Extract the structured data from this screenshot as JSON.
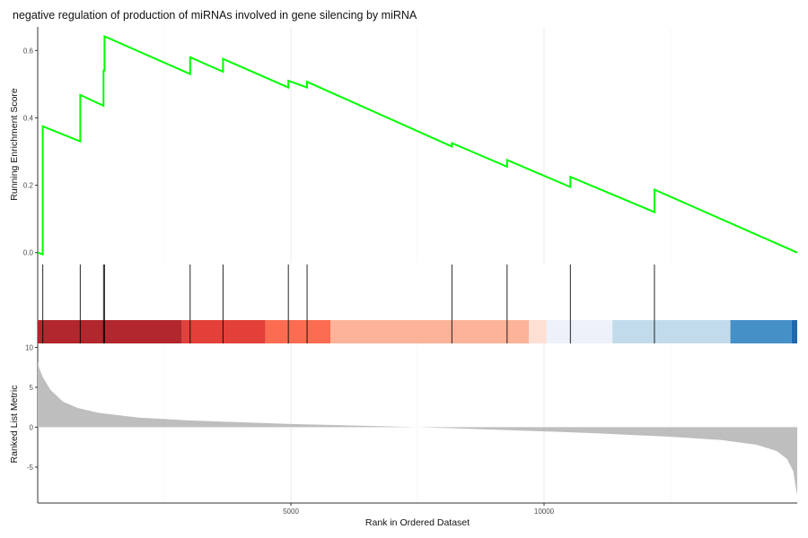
{
  "chart_data": {
    "type": "line",
    "title": "negative regulation of production of miRNAs involved in gene silencing by miRNA",
    "xlabel": "Rank in Ordered Dataset",
    "x_ticks": [
      5000,
      10000
    ],
    "xlim": [
      0,
      15000
    ],
    "grid": "vertical",
    "panels": [
      {
        "name": "running-score",
        "ylabel": "Running Enrichment Score",
        "y_ticks": [
          "0.0",
          "0.2",
          "0.4",
          "0.6"
        ],
        "ylim": [
          -0.03,
          0.67
        ],
        "series_color": "#00ff00",
        "hits": [
          {
            "rank": 100,
            "before": -0.005,
            "after": 0.375
          },
          {
            "rank": 840,
            "before": 0.33,
            "after": 0.468
          },
          {
            "rank": 1300,
            "before": 0.436,
            "after": 0.54
          },
          {
            "rank": 1320,
            "before": 0.54,
            "after": 0.642
          },
          {
            "rank": 3010,
            "before": 0.53,
            "after": 0.58
          },
          {
            "rank": 3660,
            "before": 0.537,
            "after": 0.575
          },
          {
            "rank": 4950,
            "before": 0.49,
            "after": 0.51
          },
          {
            "rank": 5320,
            "before": 0.49,
            "after": 0.507
          },
          {
            "rank": 8180,
            "before": 0.315,
            "after": 0.325
          },
          {
            "rank": 9270,
            "before": 0.255,
            "after": 0.275
          },
          {
            "rank": 10520,
            "before": 0.195,
            "after": 0.225
          },
          {
            "rank": 12180,
            "before": 0.12,
            "after": 0.187
          }
        ],
        "end_value": 0.0
      },
      {
        "name": "gene-hits",
        "hit_ranks": [
          100,
          840,
          1300,
          1320,
          3010,
          3660,
          4950,
          5320,
          8180,
          9270,
          10520,
          12180
        ],
        "color_bands": [
          {
            "from": 0,
            "to": 2850,
            "color": "#b2262d"
          },
          {
            "from": 2850,
            "to": 4500,
            "color": "#e4403a"
          },
          {
            "from": 4500,
            "to": 5780,
            "color": "#fb6c51"
          },
          {
            "from": 5780,
            "to": 9700,
            "color": "#fcb399"
          },
          {
            "from": 9700,
            "to": 10050,
            "color": "#fde0d3"
          },
          {
            "from": 10050,
            "to": 11350,
            "color": "#edf2fa"
          },
          {
            "from": 11350,
            "to": 13680,
            "color": "#c2dbea"
          },
          {
            "from": 13680,
            "to": 14890,
            "color": "#4690c8"
          },
          {
            "from": 14890,
            "to": 15000,
            "color": "#2268ad"
          }
        ]
      },
      {
        "name": "ranked-list",
        "ylabel": "Ranked List Metric",
        "y_ticks": [
          "10",
          "5",
          "0",
          "-5"
        ],
        "ylim": [
          -9.5,
          10.5
        ],
        "fill_color": "#bebebe",
        "metric_curve": [
          {
            "rank": 0,
            "value": 8.2
          },
          {
            "rank": 30,
            "value": 7.4
          },
          {
            "rank": 100,
            "value": 6.3
          },
          {
            "rank": 250,
            "value": 4.7
          },
          {
            "rank": 500,
            "value": 3.2
          },
          {
            "rank": 800,
            "value": 2.4
          },
          {
            "rank": 1200,
            "value": 1.8
          },
          {
            "rank": 2000,
            "value": 1.2
          },
          {
            "rank": 3000,
            "value": 0.85
          },
          {
            "rank": 5000,
            "value": 0.4
          },
          {
            "rank": 7000,
            "value": 0.1
          },
          {
            "rank": 7500,
            "value": 0.0
          },
          {
            "rank": 9000,
            "value": -0.3
          },
          {
            "rank": 11000,
            "value": -0.75
          },
          {
            "rank": 12500,
            "value": -1.2
          },
          {
            "rank": 13500,
            "value": -1.6
          },
          {
            "rank": 14200,
            "value": -2.2
          },
          {
            "rank": 14600,
            "value": -3.0
          },
          {
            "rank": 14800,
            "value": -4.0
          },
          {
            "rank": 14920,
            "value": -5.5
          },
          {
            "rank": 15000,
            "value": -8.6
          }
        ]
      }
    ]
  }
}
